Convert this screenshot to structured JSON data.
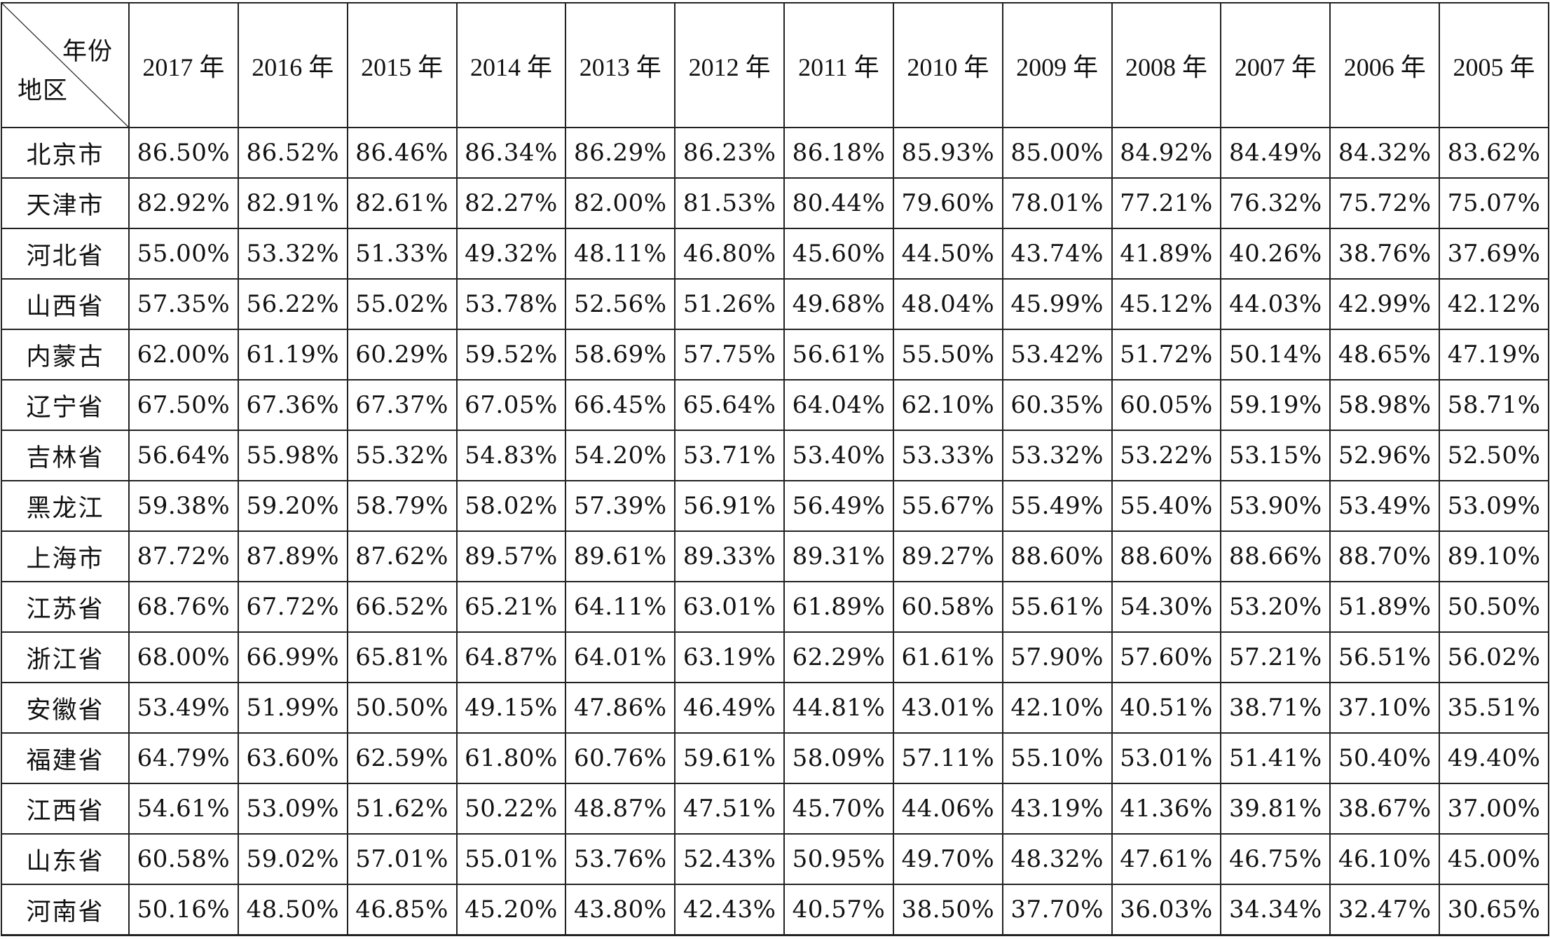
{
  "table": {
    "corner": {
      "column_axis_label": "年份",
      "row_axis_label": "地区"
    },
    "years": [
      "2017 年",
      "2016 年",
      "2015 年",
      "2014 年",
      "2013 年",
      "2012 年",
      "2011 年",
      "2010 年",
      "2009 年",
      "2008 年",
      "2007 年",
      "2006 年",
      "2005 年"
    ],
    "rows": [
      {
        "region": "北京市",
        "values": [
          "86.50%",
          "86.52%",
          "86.46%",
          "86.34%",
          "86.29%",
          "86.23%",
          "86.18%",
          "85.93%",
          "85.00%",
          "84.92%",
          "84.49%",
          "84.32%",
          "83.62%"
        ]
      },
      {
        "region": "天津市",
        "values": [
          "82.92%",
          "82.91%",
          "82.61%",
          "82.27%",
          "82.00%",
          "81.53%",
          "80.44%",
          "79.60%",
          "78.01%",
          "77.21%",
          "76.32%",
          "75.72%",
          "75.07%"
        ]
      },
      {
        "region": "河北省",
        "values": [
          "55.00%",
          "53.32%",
          "51.33%",
          "49.32%",
          "48.11%",
          "46.80%",
          "45.60%",
          "44.50%",
          "43.74%",
          "41.89%",
          "40.26%",
          "38.76%",
          "37.69%"
        ]
      },
      {
        "region": "山西省",
        "values": [
          "57.35%",
          "56.22%",
          "55.02%",
          "53.78%",
          "52.56%",
          "51.26%",
          "49.68%",
          "48.04%",
          "45.99%",
          "45.12%",
          "44.03%",
          "42.99%",
          "42.12%"
        ]
      },
      {
        "region": "内蒙古",
        "values": [
          "62.00%",
          "61.19%",
          "60.29%",
          "59.52%",
          "58.69%",
          "57.75%",
          "56.61%",
          "55.50%",
          "53.42%",
          "51.72%",
          "50.14%",
          "48.65%",
          "47.19%"
        ]
      },
      {
        "region": "辽宁省",
        "values": [
          "67.50%",
          "67.36%",
          "67.37%",
          "67.05%",
          "66.45%",
          "65.64%",
          "64.04%",
          "62.10%",
          "60.35%",
          "60.05%",
          "59.19%",
          "58.98%",
          "58.71%"
        ]
      },
      {
        "region": "吉林省",
        "values": [
          "56.64%",
          "55.98%",
          "55.32%",
          "54.83%",
          "54.20%",
          "53.71%",
          "53.40%",
          "53.33%",
          "53.32%",
          "53.22%",
          "53.15%",
          "52.96%",
          "52.50%"
        ]
      },
      {
        "region": "黑龙江",
        "values": [
          "59.38%",
          "59.20%",
          "58.79%",
          "58.02%",
          "57.39%",
          "56.91%",
          "56.49%",
          "55.67%",
          "55.49%",
          "55.40%",
          "53.90%",
          "53.49%",
          "53.09%"
        ]
      },
      {
        "region": "上海市",
        "values": [
          "87.72%",
          "87.89%",
          "87.62%",
          "89.57%",
          "89.61%",
          "89.33%",
          "89.31%",
          "89.27%",
          "88.60%",
          "88.60%",
          "88.66%",
          "88.70%",
          "89.10%"
        ]
      },
      {
        "region": "江苏省",
        "values": [
          "68.76%",
          "67.72%",
          "66.52%",
          "65.21%",
          "64.11%",
          "63.01%",
          "61.89%",
          "60.58%",
          "55.61%",
          "54.30%",
          "53.20%",
          "51.89%",
          "50.50%"
        ]
      },
      {
        "region": "浙江省",
        "values": [
          "68.00%",
          "66.99%",
          "65.81%",
          "64.87%",
          "64.01%",
          "63.19%",
          "62.29%",
          "61.61%",
          "57.90%",
          "57.60%",
          "57.21%",
          "56.51%",
          "56.02%"
        ]
      },
      {
        "region": "安徽省",
        "values": [
          "53.49%",
          "51.99%",
          "50.50%",
          "49.15%",
          "47.86%",
          "46.49%",
          "44.81%",
          "43.01%",
          "42.10%",
          "40.51%",
          "38.71%",
          "37.10%",
          "35.51%"
        ]
      },
      {
        "region": "福建省",
        "values": [
          "64.79%",
          "63.60%",
          "62.59%",
          "61.80%",
          "60.76%",
          "59.61%",
          "58.09%",
          "57.11%",
          "55.10%",
          "53.01%",
          "51.41%",
          "50.40%",
          "49.40%"
        ]
      },
      {
        "region": "江西省",
        "values": [
          "54.61%",
          "53.09%",
          "51.62%",
          "50.22%",
          "48.87%",
          "47.51%",
          "45.70%",
          "44.06%",
          "43.19%",
          "41.36%",
          "39.81%",
          "38.67%",
          "37.00%"
        ]
      },
      {
        "region": "山东省",
        "values": [
          "60.58%",
          "59.02%",
          "57.01%",
          "55.01%",
          "53.76%",
          "52.43%",
          "50.95%",
          "49.70%",
          "48.32%",
          "47.61%",
          "46.75%",
          "46.10%",
          "45.00%"
        ]
      },
      {
        "region": "河南省",
        "values": [
          "50.16%",
          "48.50%",
          "46.85%",
          "45.20%",
          "43.80%",
          "42.43%",
          "40.57%",
          "38.50%",
          "37.70%",
          "36.03%",
          "34.34%",
          "32.47%",
          "30.65%"
        ]
      }
    ]
  }
}
